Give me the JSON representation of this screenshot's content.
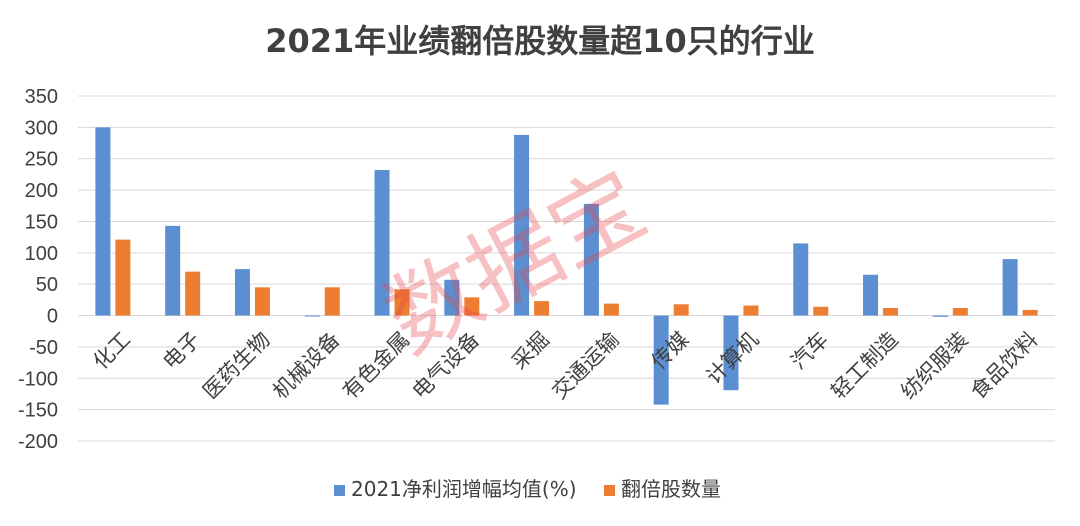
{
  "chart_data": {
    "type": "bar",
    "title": "2021年业绩翻倍股数量超10只的行业",
    "xlabel": "",
    "ylabel": "",
    "ylim": [
      -200,
      350
    ],
    "yticks": [
      350,
      300,
      250,
      200,
      150,
      100,
      50,
      0,
      -50,
      -100,
      -150,
      -200
    ],
    "yticks_labels": [
      "350",
      "300",
      "250",
      "200",
      "150",
      "100",
      "50",
      "0",
      "-50",
      "-100",
      "-150",
      "-200"
    ],
    "grid": true,
    "legend_position": "bottom",
    "categories": [
      "化工",
      "电子",
      "医药生物",
      "机械设备",
      "有色金属",
      "电气设备",
      "采掘",
      "交通运输",
      "传媒",
      "计算机",
      "汽车",
      "轻工制造",
      "纺织服装",
      "食品饮料"
    ],
    "series": [
      {
        "name": "2021净利润增幅均值(%)",
        "color": "#5b8fd1",
        "values": [
          300,
          143,
          74,
          0,
          232,
          57,
          288,
          178,
          -142,
          -119,
          115,
          65,
          -2,
          90
        ]
      },
      {
        "name": "翻倍股数量",
        "color": "#ed7d31",
        "values": [
          121,
          70,
          45,
          45,
          42,
          29,
          23,
          19,
          18,
          16,
          14,
          12,
          12,
          9
        ]
      }
    ]
  },
  "watermark": "数据宝"
}
